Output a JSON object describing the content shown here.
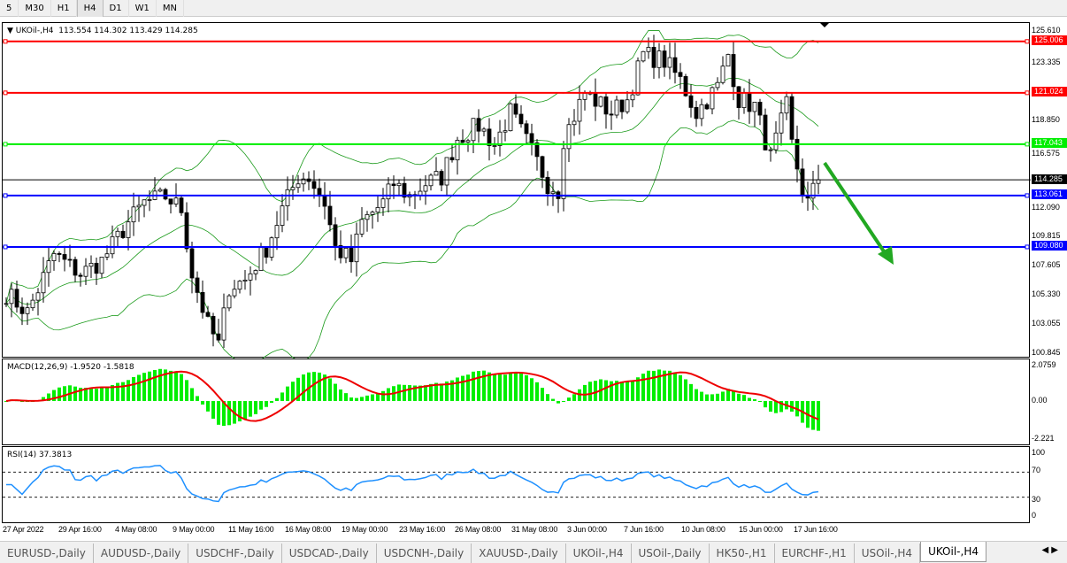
{
  "timeframes": [
    "5",
    "M30",
    "H1",
    "H4",
    "D1",
    "W1",
    "MN"
  ],
  "selected_timeframe": "H4",
  "main": {
    "title": "UKOil-,H4",
    "ohlc": "113.554 114.302 113.429 114.285",
    "price_ticks": [
      "125.610",
      "123.335",
      "118.850",
      "116.575",
      "112.090",
      "109.815",
      "107.605",
      "105.330",
      "103.055",
      "100.845"
    ],
    "current_price": "114.285",
    "hlines": [
      {
        "price": "125.006",
        "color": "#ff0000"
      },
      {
        "price": "121.024",
        "color": "#ff0000"
      },
      {
        "price": "117.043",
        "color": "#00ee00"
      },
      {
        "price": "113.061",
        "color": "#0000ff"
      },
      {
        "price": "109.080",
        "color": "#0000ff"
      }
    ],
    "close_anchors": [
      [
        0,
        105.5
      ],
      [
        4,
        104
      ],
      [
        9,
        108.5
      ],
      [
        14,
        107
      ],
      [
        18,
        108
      ],
      [
        23,
        111
      ],
      [
        26,
        112.5
      ],
      [
        30,
        113
      ],
      [
        33,
        112
      ],
      [
        35,
        107
      ],
      [
        38,
        103
      ],
      [
        40,
        101.5
      ],
      [
        42,
        106
      ],
      [
        45,
        106.5
      ],
      [
        49,
        109
      ],
      [
        52,
        112
      ],
      [
        55,
        114.5
      ],
      [
        57,
        114.5
      ],
      [
        60,
        112.5
      ],
      [
        62,
        109
      ],
      [
        65,
        108
      ],
      [
        67,
        111
      ],
      [
        71,
        112.5
      ],
      [
        73,
        114
      ],
      [
        76,
        113
      ],
      [
        79,
        114
      ],
      [
        82,
        114.5
      ],
      [
        85,
        117.5
      ],
      [
        89,
        118.5
      ],
      [
        92,
        117
      ],
      [
        95,
        119.5
      ],
      [
        99,
        116.5
      ],
      [
        102,
        114
      ],
      [
        104,
        113.5
      ],
      [
        105,
        117.5
      ],
      [
        109,
        121
      ],
      [
        114,
        119.5
      ],
      [
        117,
        120.5
      ],
      [
        120,
        124
      ],
      [
        124,
        123.5
      ],
      [
        127,
        122
      ],
      [
        130,
        119.5
      ],
      [
        134,
        121.5
      ],
      [
        136,
        124
      ],
      [
        138,
        120.5
      ],
      [
        141,
        120
      ],
      [
        144,
        116
      ],
      [
        147,
        120
      ],
      [
        148,
        117
      ],
      [
        150,
        113.5
      ],
      [
        151,
        112.5
      ],
      [
        153,
        114.285
      ]
    ],
    "arrow_color": "#22a822"
  },
  "macd": {
    "label": "MACD(12,26,9) -1.9520 -1.5818",
    "ticks": [
      "2.0759",
      "0.00",
      "-2.221"
    ]
  },
  "rsi": {
    "label": "RSI(14) 37.3813",
    "ticks": [
      "100",
      "70",
      "30",
      "0"
    ]
  },
  "dates": [
    "27 Apr 2022",
    "29 Apr 16:00",
    "4 May 08:00",
    "9 May 00:00",
    "11 May 16:00",
    "16 May 08:00",
    "19 May 00:00",
    "23 May 16:00",
    "26 May 08:00",
    "31 May 08:00",
    "3 Jun 00:00",
    "7 Jun 16:00",
    "10 Jun 08:00",
    "15 Jun 00:00",
    "17 Jun 16:00"
  ],
  "tabs": [
    "EURUSD-,Daily",
    "AUDUSD-,Daily",
    "USDCHF-,Daily",
    "USDCAD-,Daily",
    "USDCNH-,Daily",
    "XAUUSD-,Daily",
    "UKOil-,H4",
    "USOil-,Daily",
    "HK50-,H1",
    "EURCHF-,H1",
    "USOil-,H4",
    "UKOil-,H4"
  ],
  "active_tab": 11
}
